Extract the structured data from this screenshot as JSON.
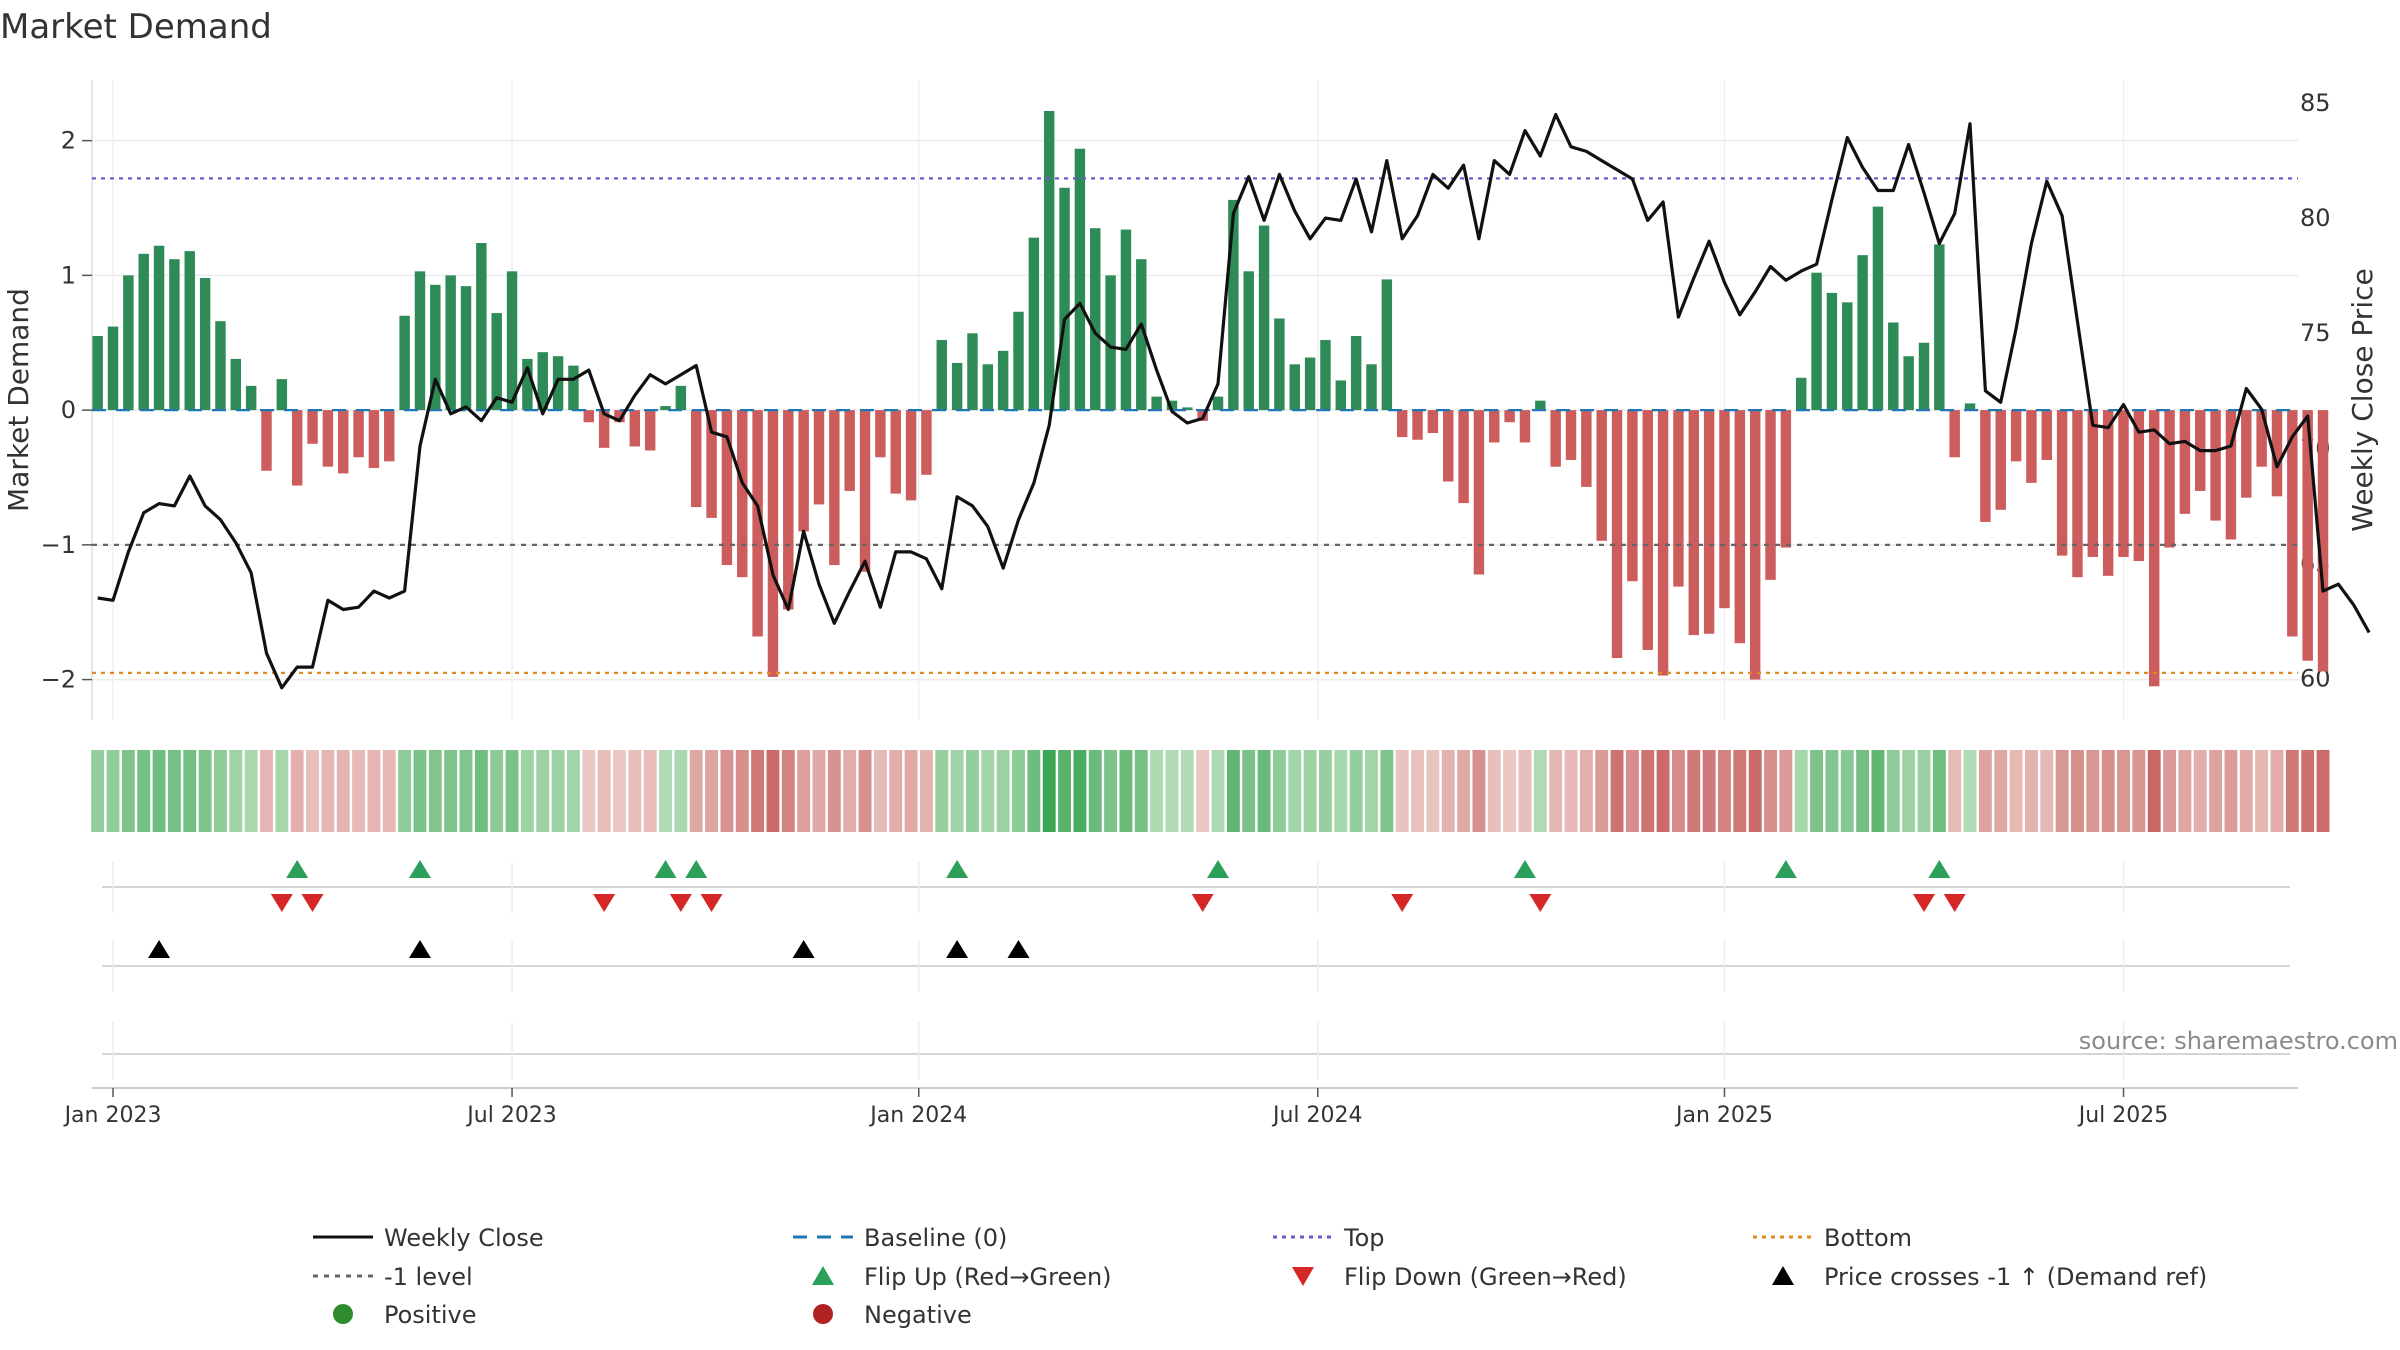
{
  "chart_data": {
    "type": "bar",
    "title": "Market Demand",
    "ylabel": "Market Demand",
    "y2label": "Weekly Close Price",
    "ylim": [
      -2.3,
      2.45
    ],
    "y2lim": [
      58.2,
      86.0
    ],
    "yticks": [
      {
        "v": 2,
        "label": "2"
      },
      {
        "v": 1,
        "label": "1"
      },
      {
        "v": 0,
        "label": "0"
      },
      {
        "v": -1,
        "label": "−1"
      },
      {
        "v": -2,
        "label": "−2"
      }
    ],
    "y2ticks": [
      {
        "v": 85,
        "label": "85"
      },
      {
        "v": 80,
        "label": "80"
      },
      {
        "v": 75,
        "label": "75"
      },
      {
        "v": 70,
        "label": "70"
      },
      {
        "v": 65,
        "label": "65"
      },
      {
        "v": 60,
        "label": "60"
      }
    ],
    "xticks": [
      {
        "week": 1,
        "label": "Jan 2023"
      },
      {
        "week": 27,
        "label": "Jul 2023"
      },
      {
        "week": 53.5,
        "label": "Jan 2024"
      },
      {
        "week": 79.5,
        "label": "Jul 2024"
      },
      {
        "week": 106,
        "label": "Jan 2025"
      },
      {
        "week": 132,
        "label": "Jul 2025"
      }
    ],
    "n_weeks": 145,
    "start_date": "2022-12-19",
    "top_level": 1.72,
    "bottom_level": -1.95,
    "demand": [
      0.55,
      0.62,
      1.0,
      1.16,
      1.22,
      1.12,
      1.18,
      0.98,
      0.66,
      0.38,
      0.18,
      -0.45,
      0.23,
      -0.56,
      -0.25,
      -0.42,
      -0.47,
      -0.35,
      -0.43,
      -0.38,
      0.7,
      1.03,
      0.93,
      1.0,
      0.92,
      1.24,
      0.72,
      1.03,
      0.38,
      0.43,
      0.4,
      0.33,
      -0.09,
      -0.28,
      -0.09,
      -0.27,
      -0.3,
      0.03,
      0.18,
      -0.72,
      -0.8,
      -1.15,
      -1.24,
      -1.68,
      -1.98,
      -1.48,
      -0.9,
      -0.7,
      -1.15,
      -0.6,
      -1.2,
      -0.35,
      -0.62,
      -0.67,
      -0.48,
      0.52,
      0.35,
      0.57,
      0.34,
      0.44,
      0.73,
      1.28,
      2.22,
      1.65,
      1.94,
      1.35,
      1.0,
      1.34,
      1.12,
      0.1,
      0.07,
      0.02,
      -0.08,
      0.1,
      1.56,
      1.03,
      1.37,
      0.68,
      0.34,
      0.39,
      0.52,
      0.22,
      0.55,
      0.34,
      0.97,
      -0.2,
      -0.22,
      -0.17,
      -0.53,
      -0.69,
      -1.22,
      -0.24,
      -0.09,
      -0.24,
      0.07,
      -0.42,
      -0.37,
      -0.57,
      -0.97,
      -1.84,
      -1.27,
      -1.78,
      -1.97,
      -1.31,
      -1.67,
      -1.66,
      -1.47,
      -1.73,
      -2.0,
      -1.26,
      -1.02,
      0.24,
      1.02,
      0.87,
      0.8,
      1.15,
      1.51,
      0.65,
      0.4,
      0.5,
      1.23,
      -0.35,
      0.05,
      -0.83,
      -0.74,
      -0.38,
      -0.54,
      -0.37,
      -1.08,
      -1.24,
      -1.09,
      -1.23,
      -1.09,
      -1.12,
      -2.05,
      -1.02,
      -0.77,
      -0.6,
      -0.82,
      -0.96,
      -0.65,
      -0.42,
      -0.64,
      -1.68,
      -1.86,
      -1.94
    ],
    "weekly_close": [
      63.5,
      63.4,
      65.5,
      67.2,
      67.6,
      67.5,
      68.8,
      67.5,
      66.9,
      65.9,
      64.6,
      61.1,
      59.6,
      60.5,
      60.5,
      63.4,
      63.0,
      63.1,
      63.8,
      63.5,
      63.8,
      70.1,
      73.0,
      71.5,
      71.8,
      71.2,
      72.2,
      72.0,
      73.5,
      71.5,
      73.0,
      73.0,
      73.4,
      71.5,
      71.2,
      72.3,
      73.2,
      72.8,
      73.2,
      73.6,
      70.7,
      70.5,
      68.5,
      67.5,
      64.5,
      63.0,
      66.4,
      64.1,
      62.4,
      63.8,
      65.1,
      63.1,
      65.5,
      65.5,
      65.2,
      63.9,
      67.9,
      67.5,
      66.6,
      64.8,
      66.9,
      68.5,
      71.0,
      75.6,
      76.3,
      75.0,
      74.4,
      74.3,
      75.4,
      73.4,
      71.6,
      71.1,
      71.3,
      72.8,
      80.2,
      81.8,
      79.9,
      81.9,
      80.3,
      79.1,
      80.0,
      79.9,
      81.7,
      79.4,
      82.5,
      79.1,
      80.1,
      81.9,
      81.3,
      82.3,
      79.1,
      82.5,
      81.9,
      83.8,
      82.7,
      84.5,
      83.1,
      82.9,
      82.5,
      82.1,
      81.7,
      79.9,
      80.7,
      75.7,
      77.4,
      79.0,
      77.2,
      75.8,
      76.8,
      77.9,
      77.3,
      77.7,
      78.0,
      80.8,
      83.5,
      82.2,
      81.2,
      81.2,
      83.2,
      81.1,
      78.9,
      80.2,
      84.1,
      72.5,
      72.0,
      75.2,
      78.9,
      81.6,
      80.1,
      75.5,
      71.0,
      70.9,
      71.9,
      70.7,
      70.8,
      70.2,
      70.3,
      69.9,
      69.9,
      70.1,
      72.6,
      71.7,
      69.2,
      70.5,
      71.4,
      63.8,
      64.1,
      63.2,
      62.0
    ],
    "flip_up_weeks": [
      13,
      21,
      37,
      39,
      56,
      73,
      93,
      110,
      120
    ],
    "flip_down_weeks": [
      12,
      14,
      33,
      38,
      40,
      72,
      85,
      94,
      119,
      121
    ],
    "price_cross_weeks": [
      4,
      21,
      46,
      56,
      60
    ],
    "legend": [
      {
        "label": "Weekly Close",
        "kind": "line",
        "color": "#111111",
        "dash": ""
      },
      {
        "label": "Baseline (0)",
        "kind": "line",
        "color": "#1f77b4",
        "dash": "14,10"
      },
      {
        "label": "Top",
        "kind": "line",
        "color": "#6a5acd",
        "dash": "4,5"
      },
      {
        "label": "Bottom",
        "kind": "line",
        "color": "#e08a1e",
        "dash": "4,5"
      },
      {
        "label": "-1 level",
        "kind": "line",
        "color": "#666666",
        "dash": "5,6"
      },
      {
        "label": "Flip Up (Red→Green)",
        "kind": "tri-up",
        "color": "#2ca05a"
      },
      {
        "label": "Flip Down (Green→Red)",
        "kind": "tri-down",
        "color": "#d62728"
      },
      {
        "label": "Price crosses -1 ↑ (Demand ref)",
        "kind": "tri-up",
        "color": "#000000"
      },
      {
        "label": "Positive",
        "kind": "dot",
        "color": "#2e8b2e"
      },
      {
        "label": "Negative",
        "kind": "dot",
        "color": "#b22222"
      }
    ]
  },
  "source_text": "source: sharemaestro.com",
  "colors": {
    "positive_bar": "#2e8b57",
    "negative_bar": "#cd5c5c",
    "close_line": "#111111",
    "baseline": "#1f77b4",
    "top": "#6a5acd",
    "bottom": "#e08a1e",
    "minus_one": "#666666"
  }
}
